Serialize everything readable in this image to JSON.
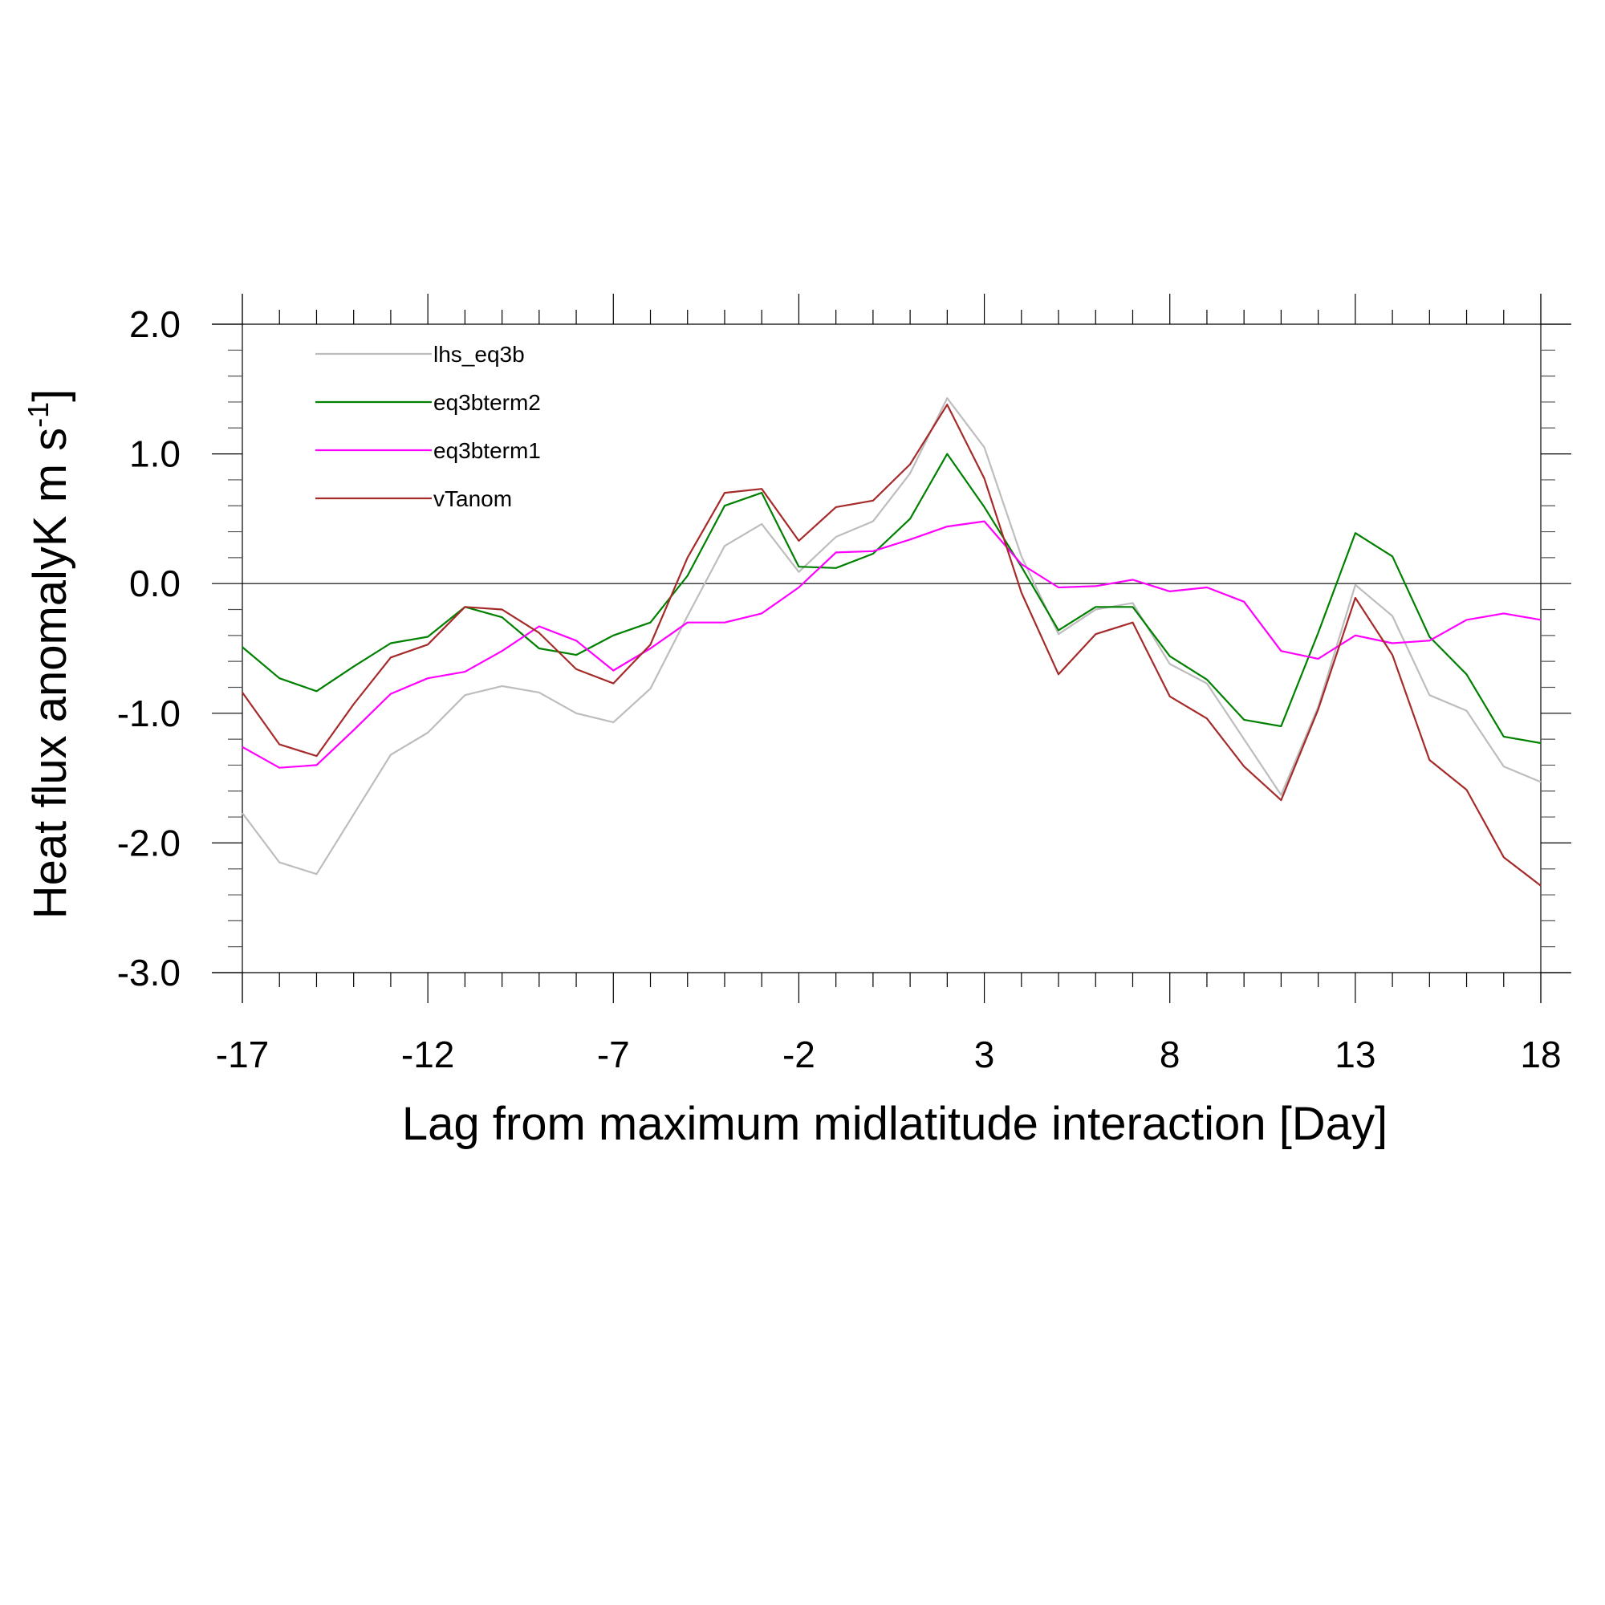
{
  "chart_data": {
    "type": "line",
    "title": "",
    "xlabel": "Lag from maximum midlatitude interaction [Day]",
    "ylabel": {
      "main": "Heat flux anomalyK m s",
      "superscript": "-1",
      "close": "]"
    },
    "xlim": [
      -17,
      18
    ],
    "ylim": [
      -3.0,
      2.0
    ],
    "x_ticks": [
      -17,
      -12,
      -7,
      -2,
      3,
      8,
      13,
      18
    ],
    "x_tick_labels": [
      "-17",
      "-12",
      "-7",
      "-2",
      "3",
      "8",
      "13",
      "18"
    ],
    "y_ticks": [
      -3.0,
      -2.0,
      -1.0,
      0.0,
      1.0,
      2.0
    ],
    "y_tick_labels": [
      "-3.0",
      "-2.0",
      "-1.0",
      "0.0",
      "1.0",
      "2.0"
    ],
    "grid": false,
    "zero_line": true,
    "legend_position": "top-left",
    "x": [
      -17,
      -16,
      -15,
      -14,
      -13,
      -12,
      -11,
      -10,
      -9,
      -8,
      -7,
      -6,
      -5,
      -4,
      -3,
      -2,
      -1,
      0,
      1,
      2,
      3,
      4,
      5,
      6,
      7,
      8,
      9,
      10,
      11,
      12,
      13,
      14,
      15,
      16,
      17,
      18
    ],
    "series": [
      {
        "name": "lhs_eq3b",
        "color": "#bdbdbd",
        "values": [
          -1.77,
          -2.15,
          -2.24,
          -1.78,
          -1.32,
          -1.15,
          -0.86,
          -0.79,
          -0.84,
          -1.0,
          -1.07,
          -0.81,
          -0.25,
          0.29,
          0.46,
          0.09,
          0.36,
          0.48,
          0.85,
          1.43,
          1.05,
          0.21,
          -0.39,
          -0.2,
          -0.15,
          -0.62,
          -0.77,
          -1.2,
          -1.63,
          -0.95,
          -0.01,
          -0.25,
          -0.86,
          -0.98,
          -1.41,
          -1.53
        ]
      },
      {
        "name": "eq3bterm2",
        "color": "#008000",
        "values": [
          -0.49,
          -0.73,
          -0.83,
          -0.64,
          -0.46,
          -0.41,
          -0.18,
          -0.26,
          -0.5,
          -0.55,
          -0.4,
          -0.3,
          0.06,
          0.6,
          0.7,
          0.13,
          0.12,
          0.23,
          0.5,
          1.0,
          0.59,
          0.13,
          -0.36,
          -0.18,
          -0.18,
          -0.56,
          -0.74,
          -1.05,
          -1.1,
          -0.38,
          0.39,
          0.21,
          -0.41,
          -0.7,
          -1.18,
          -1.23
        ]
      },
      {
        "name": "eq3bterm1",
        "color": "#ff00ff",
        "values": [
          -1.26,
          -1.42,
          -1.4,
          -1.13,
          -0.85,
          -0.73,
          -0.68,
          -0.52,
          -0.33,
          -0.44,
          -0.67,
          -0.5,
          -0.3,
          -0.3,
          -0.23,
          -0.03,
          0.24,
          0.25,
          0.34,
          0.44,
          0.48,
          0.15,
          -0.03,
          -0.02,
          0.03,
          -0.06,
          -0.03,
          -0.14,
          -0.52,
          -0.58,
          -0.4,
          -0.46,
          -0.44,
          -0.28,
          -0.23,
          -0.28
        ]
      },
      {
        "name": "vTanom",
        "color": "#a52a2a",
        "values": [
          -0.84,
          -1.24,
          -1.33,
          -0.93,
          -0.57,
          -0.47,
          -0.18,
          -0.2,
          -0.38,
          -0.66,
          -0.77,
          -0.47,
          0.2,
          0.7,
          0.73,
          0.33,
          0.59,
          0.64,
          0.92,
          1.38,
          0.81,
          -0.07,
          -0.7,
          -0.39,
          -0.3,
          -0.87,
          -1.04,
          -1.41,
          -1.67,
          -0.97,
          -0.11,
          -0.55,
          -1.36,
          -1.59,
          -2.11,
          -2.33
        ]
      }
    ]
  }
}
